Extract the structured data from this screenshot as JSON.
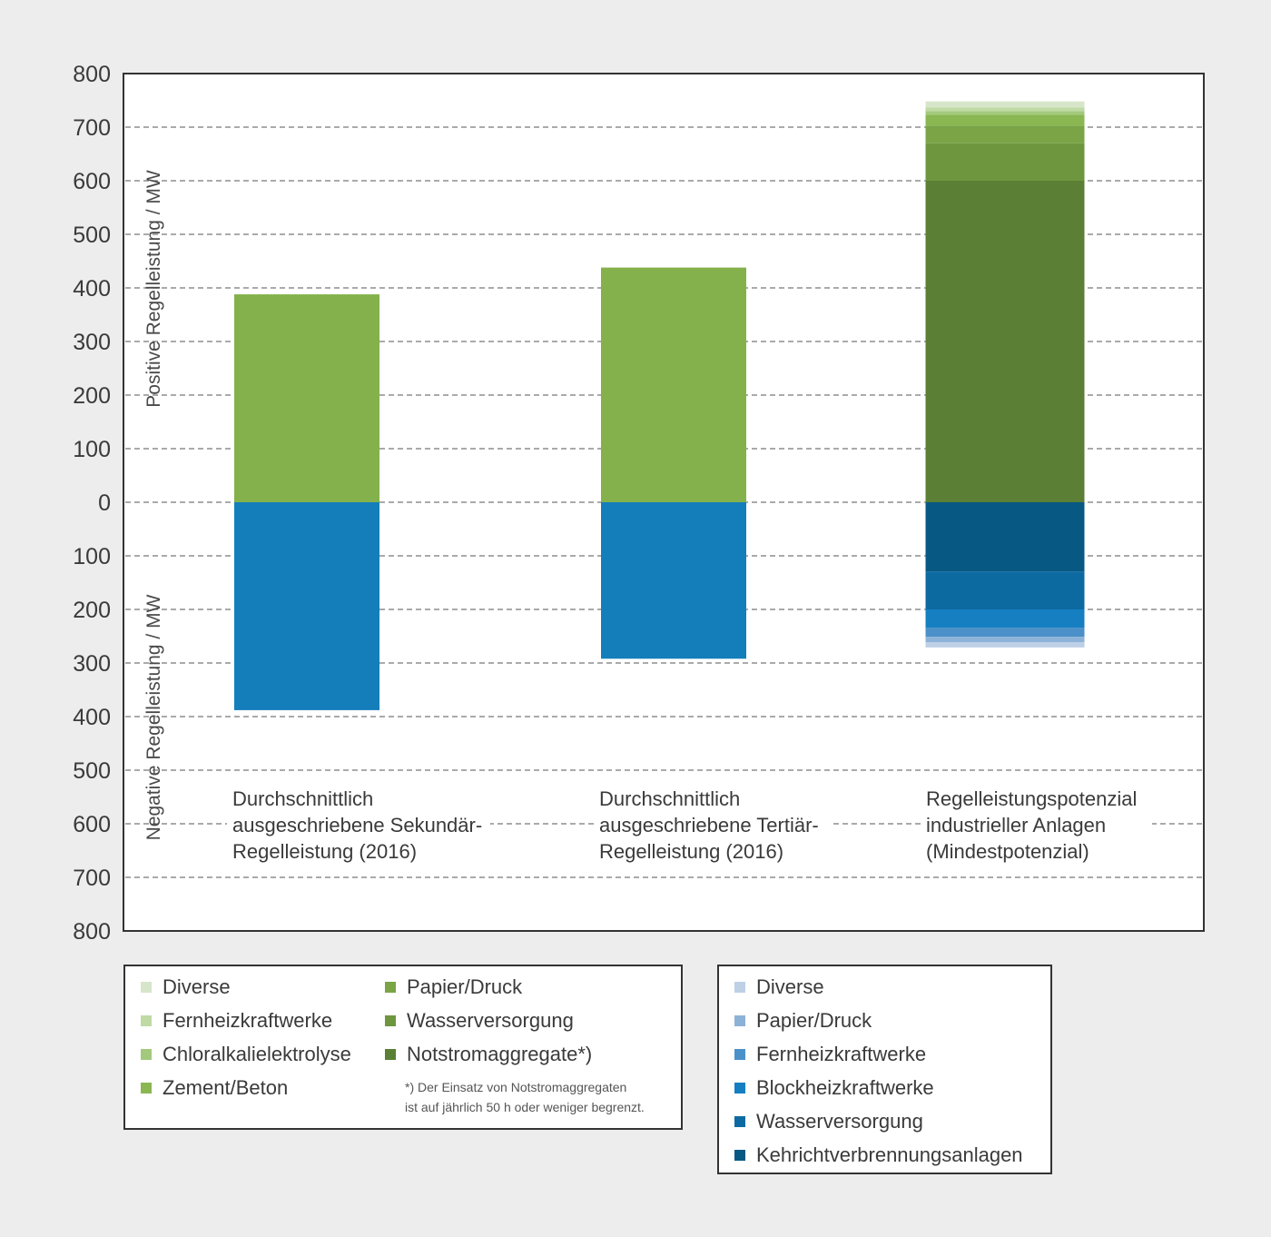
{
  "chart_data": {
    "type": "bar",
    "stacked": true,
    "diverging": true,
    "yaxis": {
      "min": -800,
      "max": 800,
      "step": 100,
      "tick_labels": [
        "800",
        "700",
        "600",
        "500",
        "400",
        "300",
        "200",
        "100",
        "0",
        "100",
        "200",
        "300",
        "400",
        "500",
        "600",
        "700",
        "800"
      ]
    },
    "ylabel_positive": "Positive Regelleistung / MW",
    "ylabel_negative": "Negative Regelleistung / MW",
    "grid": "dashed horizontal",
    "categories": [
      {
        "lines": [
          "Durchschnittlich",
          "ausgeschriebene Sekundär-",
          "Regelleistung (2016)"
        ],
        "positive": [
          {
            "value": 388,
            "color": "#84b14b"
          }
        ],
        "negative": [
          {
            "value": 388,
            "color": "#147ebb"
          }
        ]
      },
      {
        "lines": [
          "Durchschnittlich",
          "ausgeschriebene Tertiär-",
          "Regelleistung (2016)"
        ],
        "positive": [
          {
            "value": 438,
            "color": "#84b14b"
          }
        ],
        "negative": [
          {
            "value": 292,
            "color": "#147ebb"
          }
        ]
      },
      {
        "lines": [
          "Regelleistungspotenzial",
          "industrieller Anlagen",
          "(Mindestpotenzial)"
        ],
        "positive": [
          {
            "name": "Notstromaggregate*)",
            "value": 600,
            "color": "#5b7f34"
          },
          {
            "name": "Wasserversorgung",
            "value": 70,
            "color": "#6e963f"
          },
          {
            "name": "Papier/Druck",
            "value": 33,
            "color": "#7aa446"
          },
          {
            "name": "Zement/Beton",
            "value": 20,
            "color": "#8ab751"
          },
          {
            "name": "Chloralkalielektrolyse",
            "value": 7,
            "color": "#a3c97c"
          },
          {
            "name": "Fernheizkraftwerke",
            "value": 7,
            "color": "#bfdaa4"
          },
          {
            "name": "Diverse",
            "value": 11,
            "color": "#d7e6ca"
          }
        ],
        "negative": [
          {
            "name": "Kehrichtverbrennungsanlagen",
            "value": 129,
            "color": "#075883"
          },
          {
            "name": "Wasserversorgung",
            "value": 71,
            "color": "#0d6aa1"
          },
          {
            "name": "Blockheizkraftwerke",
            "value": 34,
            "color": "#157fc1"
          },
          {
            "name": "Fernheizkraftwerke",
            "value": 17,
            "color": "#4b90c8"
          },
          {
            "name": "Papier/Druck",
            "value": 10,
            "color": "#8db2d7"
          },
          {
            "name": "Diverse",
            "value": 10,
            "color": "#bdd0e6"
          }
        ]
      }
    ]
  },
  "legend_positive": {
    "col1": [
      {
        "label": "Diverse",
        "color": "#d7e6ca"
      },
      {
        "label": "Fernheizkraftwerke",
        "color": "#bfdaa4"
      },
      {
        "label": "Chloralkalielektrolyse",
        "color": "#a3c97c"
      },
      {
        "label": "Zement/Beton",
        "color": "#8ab751"
      }
    ],
    "col2": [
      {
        "label": "Papier/Druck",
        "color": "#7aa446"
      },
      {
        "label": "Wasserversorgung",
        "color": "#6e963f"
      },
      {
        "label": "Notstromaggregate*)",
        "color": "#5b7f34"
      }
    ],
    "note_line1": "*) Der Einsatz von Notstromaggregaten",
    "note_line2": "ist auf jährlich 50 h oder weniger begrenzt."
  },
  "legend_negative": {
    "items": [
      {
        "label": "Diverse",
        "color": "#bdd0e6"
      },
      {
        "label": "Papier/Druck",
        "color": "#8db2d7"
      },
      {
        "label": "Fernheizkraftwerke",
        "color": "#4b90c8"
      },
      {
        "label": "Blockheizkraftwerke",
        "color": "#157fc1"
      },
      {
        "label": "Wasserversorgung",
        "color": "#0d6aa1"
      },
      {
        "label": "Kehrichtverbrennungsanlagen",
        "color": "#075883"
      }
    ]
  }
}
